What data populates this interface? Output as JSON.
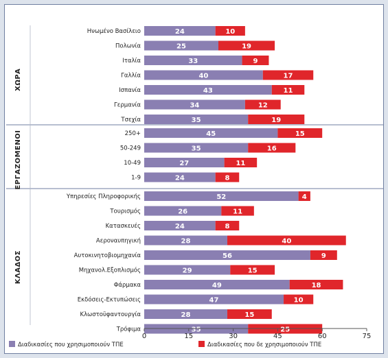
{
  "chart_data": {
    "type": "bar",
    "stacked": true,
    "orientation": "horizontal",
    "xlim": [
      0,
      75
    ],
    "xticks": [
      "0",
      "15",
      "30",
      "45",
      "60",
      "75"
    ],
    "groups": [
      {
        "label": "ΧΩΡΑ",
        "categories": [
          "Ηνωμένο Βασίλειο",
          "Πολωνία",
          "Ιταλία",
          "Γαλλία",
          "Ισπανία",
          "Γερμανία",
          "Τσεχία"
        ],
        "use": [
          24,
          25,
          33,
          40,
          43,
          34,
          35
        ],
        "not_use": [
          10,
          19,
          9,
          17,
          11,
          12,
          19
        ]
      },
      {
        "label": "ΕΡΓΑΖΟΜΕΝΟΙ",
        "categories": [
          "250+",
          "50-249",
          "10-49",
          "1-9"
        ],
        "use": [
          45,
          35,
          27,
          24
        ],
        "not_use": [
          15,
          16,
          11,
          8
        ]
      },
      {
        "label": "ΚΛΑΔΟΣ",
        "categories": [
          "Υπηρεσίες Πληροφορικής",
          "Τουρισμός",
          "Κατασκευές",
          "Αεροναυπηγική",
          "Αυτοκινητοβιομηχανία",
          "Μηχανολ.Εξοπλισμός",
          "Φάρμακα",
          "Εκδόσεις-Εκτυπώσεις",
          "Κλωστοϋφαντουργία",
          "Τρόφιμα"
        ],
        "use": [
          52,
          26,
          24,
          28,
          56,
          29,
          49,
          47,
          28,
          35
        ],
        "not_use": [
          4,
          11,
          8,
          40,
          9,
          15,
          18,
          10,
          15,
          25
        ]
      }
    ],
    "series": [
      {
        "name": "Διαδικασίες που χρησιμοποιούν ΤΠΕ",
        "color": "#8a7fb2"
      },
      {
        "name": "Διαδικασίες που δε χρησιμοποιούν ΤΠΕ",
        "color": "#e0262b"
      }
    ]
  }
}
